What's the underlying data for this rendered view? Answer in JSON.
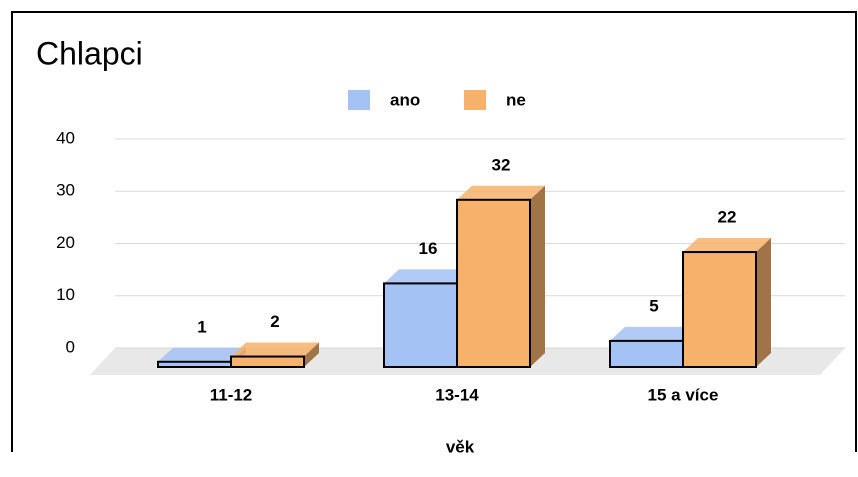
{
  "chart_data": {
    "type": "bar3d",
    "title": "Chlapci",
    "x_label": "věk",
    "categories": [
      "11-12",
      "13-14",
      "15 a více"
    ],
    "series": [
      {
        "name": "ano",
        "color": "#a4c2f4",
        "values": [
          1,
          16,
          5
        ]
      },
      {
        "name": "ne",
        "color": "#f6b26b",
        "values": [
          2,
          32,
          22
        ]
      }
    ],
    "ylim": [
      0,
      40
    ],
    "yticks": [
      0,
      10,
      20,
      30,
      40
    ],
    "grid": true,
    "legend": "top"
  }
}
